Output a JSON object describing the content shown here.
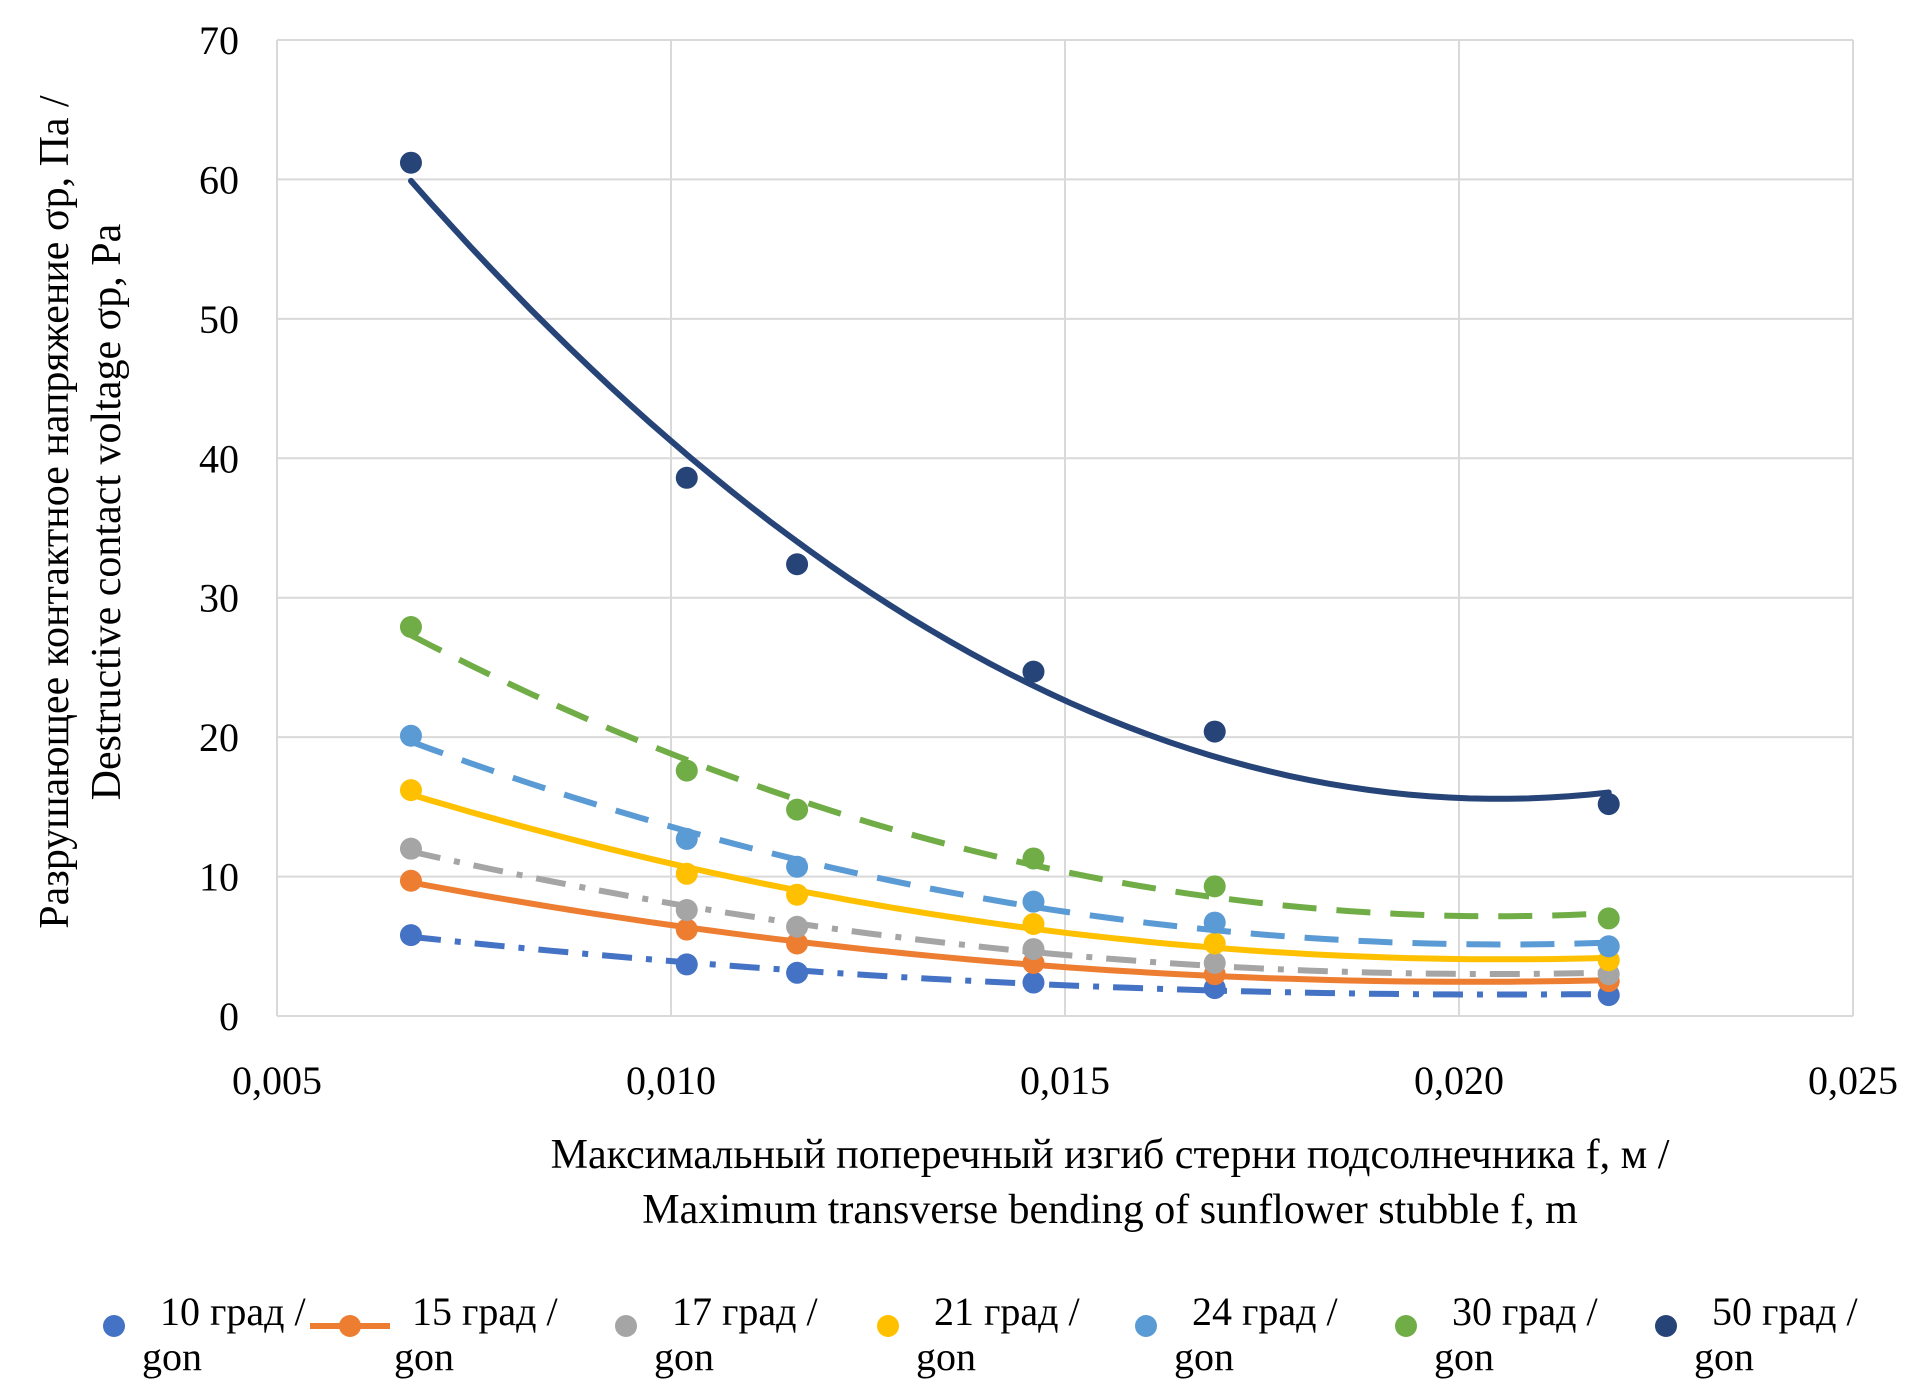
{
  "chart_data": {
    "type": "scatter",
    "xlabel": [
      "Максимальный поперечный изгиб стерни подсолнечника f, м /",
      "Maximum transverse bending of sunflower stubble f, m"
    ],
    "ylabel": [
      "Разрушающее контактное  напряжение σp, Па /",
      "Destructive contact voltage σp, Pa"
    ],
    "xlim": [
      0.005,
      0.025
    ],
    "ylim": [
      0,
      70
    ],
    "xticks": [
      "0,005",
      "0,010",
      "0,015",
      "0,020",
      "0,025"
    ],
    "xtick_values": [
      0.005,
      0.01,
      0.015,
      0.02,
      0.025
    ],
    "yticks": [
      "0",
      "10",
      "20",
      "30",
      "40",
      "50",
      "60",
      "70"
    ],
    "ytick_values": [
      0,
      10,
      20,
      30,
      40,
      50,
      60,
      70
    ],
    "grid": true,
    "legend_position": "bottom",
    "x": [
      0.0067,
      0.0102,
      0.0116,
      0.0146,
      0.0169,
      0.0219
    ],
    "series": [
      {
        "name": "10 град / gon",
        "legend": [
          "10 град /",
          "gon"
        ],
        "color": "#4472C4",
        "values": [
          5.8,
          3.7,
          3.1,
          2.4,
          2.0,
          1.5
        ],
        "trend_dash": "dashdot"
      },
      {
        "name": "15 град / gon",
        "legend": [
          "15 град /",
          "gon"
        ],
        "color": "#ED7D31",
        "values": [
          9.7,
          6.2,
          5.2,
          3.8,
          3.0,
          2.5
        ],
        "trend_dash": "solid"
      },
      {
        "name": "17 град / gon",
        "legend": [
          "17 град /",
          "gon"
        ],
        "color": "#A5A5A5",
        "values": [
          12.0,
          7.6,
          6.4,
          4.8,
          3.8,
          3.0
        ],
        "trend_dash": "dashdot"
      },
      {
        "name": "21 град / gon",
        "legend": [
          "21 град /",
          "gon"
        ],
        "color": "#FFC000",
        "values": [
          16.2,
          10.2,
          8.7,
          6.6,
          5.2,
          4.0
        ],
        "trend_dash": "solid"
      },
      {
        "name": "24 град / gon",
        "legend": [
          "24 град /",
          "gon"
        ],
        "color": "#5B9BD5",
        "values": [
          20.1,
          12.7,
          10.7,
          8.2,
          6.7,
          5.0
        ],
        "trend_dash": "dash"
      },
      {
        "name": "30 град / gon",
        "legend": [
          "30 град /",
          "gon"
        ],
        "color": "#70AD47",
        "values": [
          27.9,
          17.6,
          14.8,
          11.3,
          9.3,
          7.0
        ],
        "trend_dash": "dash"
      },
      {
        "name": "50 град / gon",
        "legend": [
          "50 град /",
          "gon"
        ],
        "color": "#264478",
        "values": [
          61.2,
          38.6,
          32.4,
          24.7,
          20.4,
          15.2
        ],
        "trend_dash": "solid"
      }
    ]
  }
}
